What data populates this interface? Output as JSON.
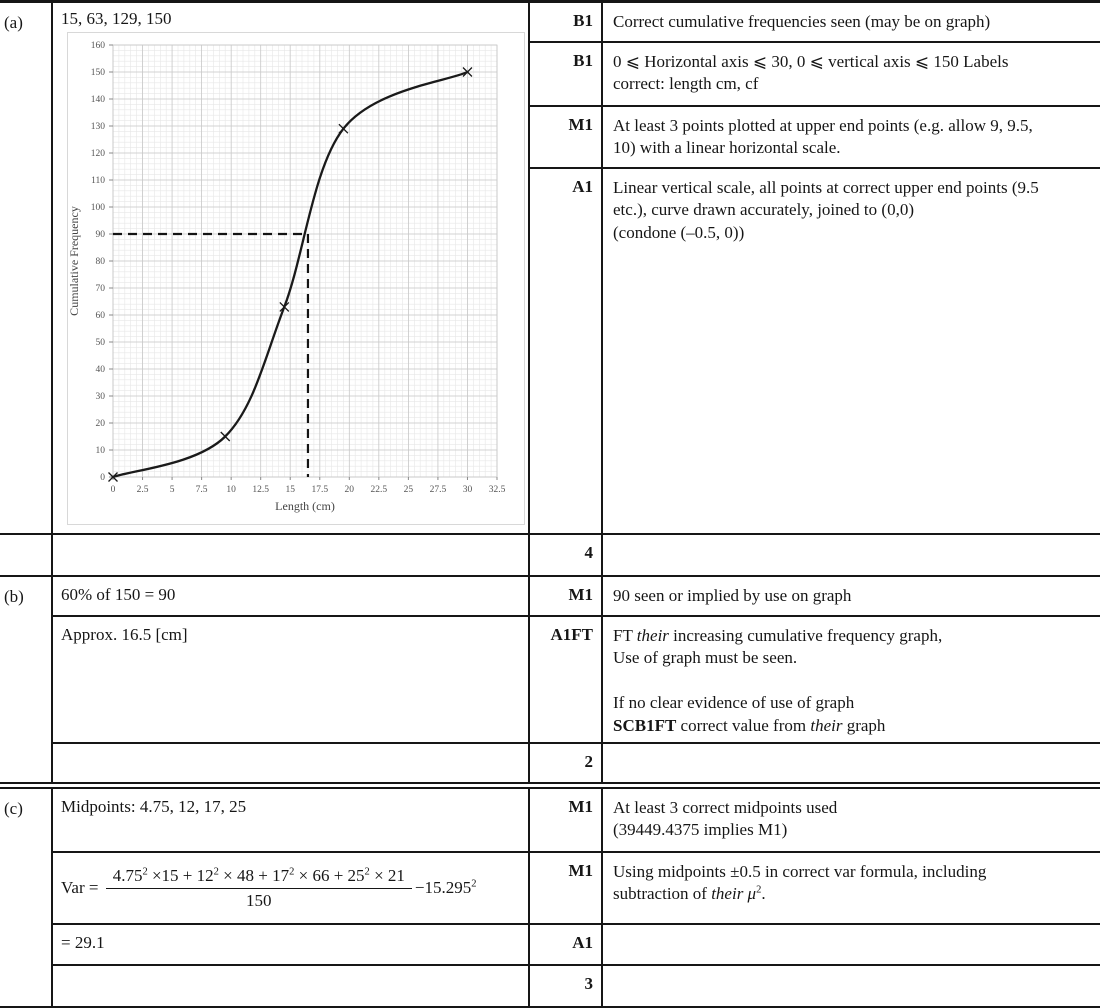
{
  "sections": [
    {
      "label": "(a)",
      "answer": "15, 63, 129, 150",
      "mark_rows": [
        {
          "mark": "B1",
          "comment": [
            {
              "t": "Correct cumulative frequencies seen (may be on graph)"
            }
          ]
        },
        {
          "mark": "B1",
          "comment": [
            {
              "t": "0 ⩽ Horizontal axis ⩽ 30, 0 ⩽ vertical axis ⩽ 150 Labels\ncorrect: length cm, cf"
            }
          ]
        },
        {
          "mark": "M1",
          "comment": [
            {
              "t": "At least 3 points plotted at upper end points (e.g. allow 9, 9.5,\n10) with a linear horizontal scale."
            }
          ]
        },
        {
          "mark": "A1",
          "comment": [
            {
              "t": "Linear vertical scale, all points at correct upper end points (9.5\netc.), curve drawn accurately, joined to (0,0)\n(condone (–0.5, 0))"
            }
          ]
        }
      ],
      "total": "4"
    },
    {
      "label": "(b)",
      "rows": [
        {
          "answer": "60% of 150 = 90",
          "mark": "M1",
          "comment": [
            {
              "t": "90 seen or implied by use on graph"
            }
          ]
        },
        {
          "answer": "Approx. 16.5 [cm]",
          "mark": "A1FT",
          "comment": [
            {
              "t": "FT "
            },
            {
              "t": "their",
              "s": "i"
            },
            {
              "t": " increasing cumulative frequency graph,\nUse of graph must be seen.\n\nIf no clear evidence of use of graph\n"
            },
            {
              "t": "SCB1FT",
              "s": "b"
            },
            {
              "t": " correct value from "
            },
            {
              "t": "their",
              "s": "i"
            },
            {
              "t": " graph"
            }
          ]
        }
      ],
      "total": "2"
    },
    {
      "label": "(c)",
      "rows": [
        {
          "answer": "Midpoints: 4.75, 12, 17, 25",
          "mark": "M1",
          "comment": [
            {
              "t": "At least 3 correct midpoints used\n(39449.4375 implies M1)"
            }
          ]
        },
        {
          "formula": {
            "prefix": "Var = ",
            "numerator": [
              {
                "t": "4.75"
              },
              {
                "t": "2",
                "s": "sup"
              },
              {
                "t": " ×15 + 12"
              },
              {
                "t": "2",
                "s": "sup"
              },
              {
                "t": " × 48 + 17"
              },
              {
                "t": "2",
                "s": "sup"
              },
              {
                "t": " × 66 + 25"
              },
              {
                "t": "2",
                "s": "sup"
              },
              {
                "t": " × 21"
              }
            ],
            "denominator": "150",
            "suffix": [
              {
                "t": "−15.295"
              },
              {
                "t": "2",
                "s": "sup"
              }
            ]
          },
          "mark": "M1",
          "comment": [
            {
              "t": "Using midpoints ±0.5 in correct var formula, including\nsubtraction of "
            },
            {
              "t": "their μ",
              "s": "i"
            },
            {
              "t": "2",
              "s": "sup"
            },
            {
              "t": "."
            }
          ]
        },
        {
          "answer": "= 29.1",
          "mark": "A1",
          "comment": []
        }
      ],
      "total": "3"
    }
  ],
  "chart_data": {
    "type": "line",
    "title": "",
    "xlabel": "Length (cm)",
    "ylabel": "Cumulative Frequency",
    "x": [
      0,
      9.5,
      14.5,
      19.5,
      30
    ],
    "y": [
      0,
      15,
      63,
      129,
      150
    ],
    "xlim": [
      0,
      32.5
    ],
    "ylim": [
      0,
      160
    ],
    "xtick_step": 2.5,
    "ytick_step": 10,
    "xminor_step": 0.5,
    "yminor_step": 2,
    "marker": "x",
    "guide": {
      "x": 16.5,
      "y": 90
    },
    "grid": true,
    "legend": false,
    "curve_color": "#1a1a1a",
    "grid_major_color": "#c9c9c9",
    "grid_minor_color": "#e7e7e7"
  }
}
